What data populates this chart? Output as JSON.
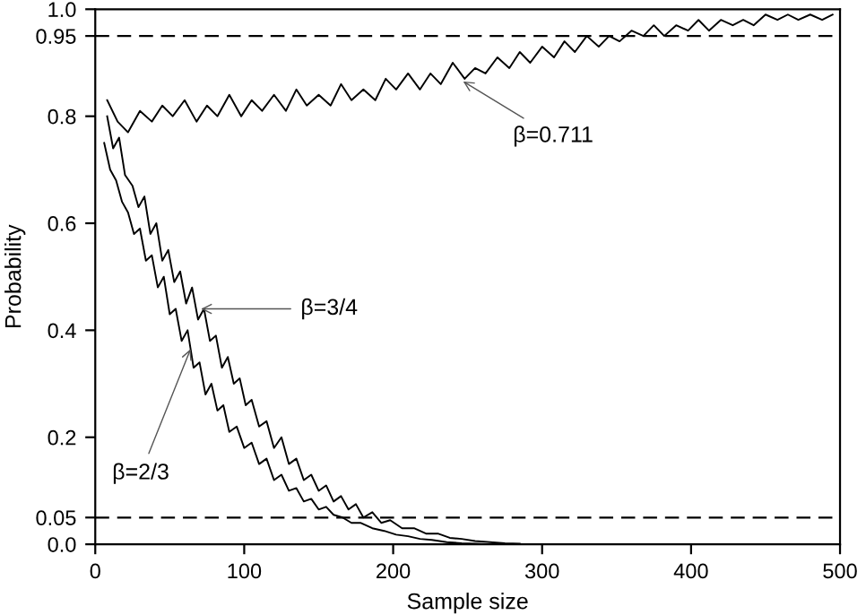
{
  "chart_data": {
    "type": "line",
    "xlabel": "Sample size",
    "ylabel": "Probability",
    "xlim": [
      0,
      500
    ],
    "ylim": [
      0.0,
      1.0
    ],
    "xticks": [
      0,
      100,
      200,
      300,
      400,
      500
    ],
    "yticks": [
      {
        "value": 0.0,
        "label": "0.0"
      },
      0.05,
      0.2,
      0.4,
      0.6,
      0.8,
      0.95,
      {
        "value": 1.0,
        "label": "1.0"
      }
    ],
    "grid": false,
    "legend": false,
    "marker": "none",
    "line_style": "solid",
    "ref_lines": [
      {
        "axis": "y",
        "value": 0.95,
        "color": "#000000",
        "line_style": "dashed"
      },
      {
        "axis": "y",
        "value": 0.05,
        "color": "#000000",
        "line_style": "dashed"
      }
    ],
    "annotations": [
      {
        "text": "β=0.711",
        "x": 247,
        "y": 0.865
      },
      {
        "text": "β=3/4",
        "x": 71,
        "y": 0.44
      },
      {
        "text": "β=2/3",
        "x": 64,
        "y": 0.365
      }
    ],
    "series": [
      {
        "color": "#000000",
        "x": [
          8,
          15,
          22,
          30,
          38,
          45,
          52,
          60,
          68,
          75,
          82,
          90,
          98,
          105,
          112,
          120,
          128,
          135,
          142,
          150,
          158,
          165,
          172,
          180,
          188,
          195,
          202,
          210,
          218,
          225,
          232,
          240,
          248,
          255,
          262,
          270,
          278,
          285,
          292,
          300,
          308,
          315,
          322,
          330,
          338,
          345,
          352,
          360,
          368,
          375,
          382,
          390,
          398,
          405,
          412,
          420,
          428,
          435,
          442,
          450,
          458,
          465,
          472,
          480,
          488,
          495
        ],
        "values": [
          0.83,
          0.79,
          0.77,
          0.81,
          0.79,
          0.82,
          0.8,
          0.83,
          0.79,
          0.82,
          0.8,
          0.84,
          0.8,
          0.83,
          0.81,
          0.84,
          0.81,
          0.85,
          0.82,
          0.84,
          0.82,
          0.86,
          0.83,
          0.85,
          0.83,
          0.87,
          0.85,
          0.88,
          0.85,
          0.88,
          0.86,
          0.9,
          0.87,
          0.89,
          0.88,
          0.91,
          0.89,
          0.92,
          0.9,
          0.93,
          0.91,
          0.94,
          0.92,
          0.95,
          0.93,
          0.95,
          0.94,
          0.96,
          0.95,
          0.97,
          0.95,
          0.97,
          0.96,
          0.98,
          0.96,
          0.98,
          0.97,
          0.98,
          0.97,
          0.99,
          0.98,
          0.99,
          0.98,
          0.99,
          0.98,
          0.99
        ]
      },
      {
        "color": "#000000",
        "x": [
          8,
          12,
          16,
          20,
          25,
          29,
          33,
          37,
          41,
          45,
          49,
          53,
          57,
          61,
          65,
          69,
          73,
          77,
          81,
          85,
          89,
          93,
          97,
          101,
          105,
          110,
          115,
          120,
          125,
          130,
          135,
          140,
          145,
          150,
          155,
          160,
          165,
          170,
          175,
          180,
          186,
          192,
          198,
          206,
          214,
          222,
          230,
          238,
          246,
          255,
          265,
          275,
          285
        ],
        "values": [
          0.8,
          0.74,
          0.76,
          0.69,
          0.67,
          0.63,
          0.65,
          0.58,
          0.6,
          0.53,
          0.55,
          0.49,
          0.51,
          0.45,
          0.48,
          0.42,
          0.44,
          0.38,
          0.39,
          0.33,
          0.35,
          0.3,
          0.31,
          0.26,
          0.27,
          0.22,
          0.23,
          0.18,
          0.2,
          0.15,
          0.16,
          0.12,
          0.13,
          0.1,
          0.11,
          0.08,
          0.09,
          0.065,
          0.075,
          0.05,
          0.06,
          0.04,
          0.045,
          0.03,
          0.03,
          0.02,
          0.02,
          0.012,
          0.01,
          0.006,
          0.004,
          0.002,
          0.001
        ]
      },
      {
        "color": "#000000",
        "x": [
          6,
          10,
          14,
          18,
          22,
          26,
          30,
          34,
          38,
          42,
          46,
          50,
          54,
          58,
          62,
          66,
          70,
          74,
          78,
          82,
          86,
          90,
          95,
          100,
          105,
          110,
          115,
          120,
          125,
          130,
          135,
          140,
          145,
          150,
          155,
          160,
          166,
          172,
          178,
          186,
          194,
          202,
          210,
          218,
          226,
          236,
          246,
          256,
          266
        ],
        "values": [
          0.75,
          0.7,
          0.68,
          0.64,
          0.62,
          0.58,
          0.59,
          0.53,
          0.54,
          0.48,
          0.5,
          0.43,
          0.44,
          0.38,
          0.4,
          0.33,
          0.34,
          0.28,
          0.3,
          0.25,
          0.26,
          0.21,
          0.22,
          0.18,
          0.19,
          0.15,
          0.16,
          0.12,
          0.13,
          0.1,
          0.105,
          0.08,
          0.085,
          0.065,
          0.07,
          0.055,
          0.05,
          0.04,
          0.04,
          0.03,
          0.025,
          0.018,
          0.015,
          0.01,
          0.008,
          0.004,
          0.002,
          0.001,
          0.0
        ]
      }
    ]
  }
}
